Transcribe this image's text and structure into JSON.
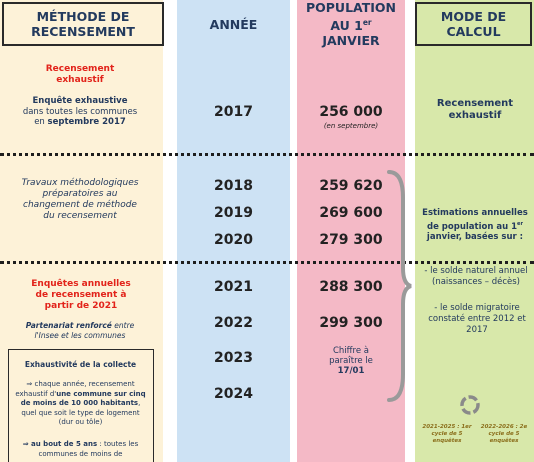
{
  "header": {
    "method": "MÉTHODE DE RECENSEMENT",
    "year": "ANNÉE",
    "population": "POPULATION AU 1",
    "population_sup": "er",
    "population_end": "JANVIER",
    "calc": "MODE DE CALCUL"
  },
  "period_2017": {
    "method_title": "Recensement exhaustif",
    "method_bold": "Enquête exhaustive",
    "method_text": "dans toutes les communes en",
    "method_date": "septembre 2017",
    "year": "2017",
    "population": "256 000",
    "population_note": "(en septembre)",
    "calc": "Recensement exhaustif"
  },
  "period_2018_2020": {
    "method": "Travaux méthodologiques préparatoires au changement de méthode du recensement",
    "years": [
      "2018",
      "2019",
      "2020"
    ],
    "populations": [
      "259 620",
      "269 600",
      "279 300"
    ]
  },
  "period_2021": {
    "method_title": "Enquêtes annuelles de recensement à partir de 2021",
    "partnership_bold": "Partenariat renforcé",
    "partnership_text": "entre l'Insee et les communes",
    "years": [
      "2021",
      "2022",
      "2023",
      "2024"
    ],
    "populations": [
      "288 300",
      "299 300"
    ],
    "pending": "Chiffre à paraître le",
    "pending_date": "17/01"
  },
  "collection_box": {
    "title": "Exhaustivité de la collecte",
    "item1_a": "⇒ chaque année, recensement exhaustif d'",
    "item1_b": "une commune sur cinq de moins de 10 000 habitants",
    "item1_c": ", quel que soit le type de logement (dur ou tôle)",
    "item2_a": "⇒ au bout de 5 ans",
    "item2_b": ": toutes les communes de moins de"
  },
  "calc_estimates": {
    "title_a": "Estimations annuelles de population au 1",
    "title_sup": "er",
    "title_b": "janvier, basées sur :",
    "natural": "- le solde naturel annuel (naissances – décès)",
    "migration": "- le solde migratoire constaté entre 2012 et 2017",
    "cycle1": "2021-2025 : 1er cycle de 5 enquêtes",
    "cycle2": "2022-2026 : 2e cycle de 5 enquêtes"
  }
}
